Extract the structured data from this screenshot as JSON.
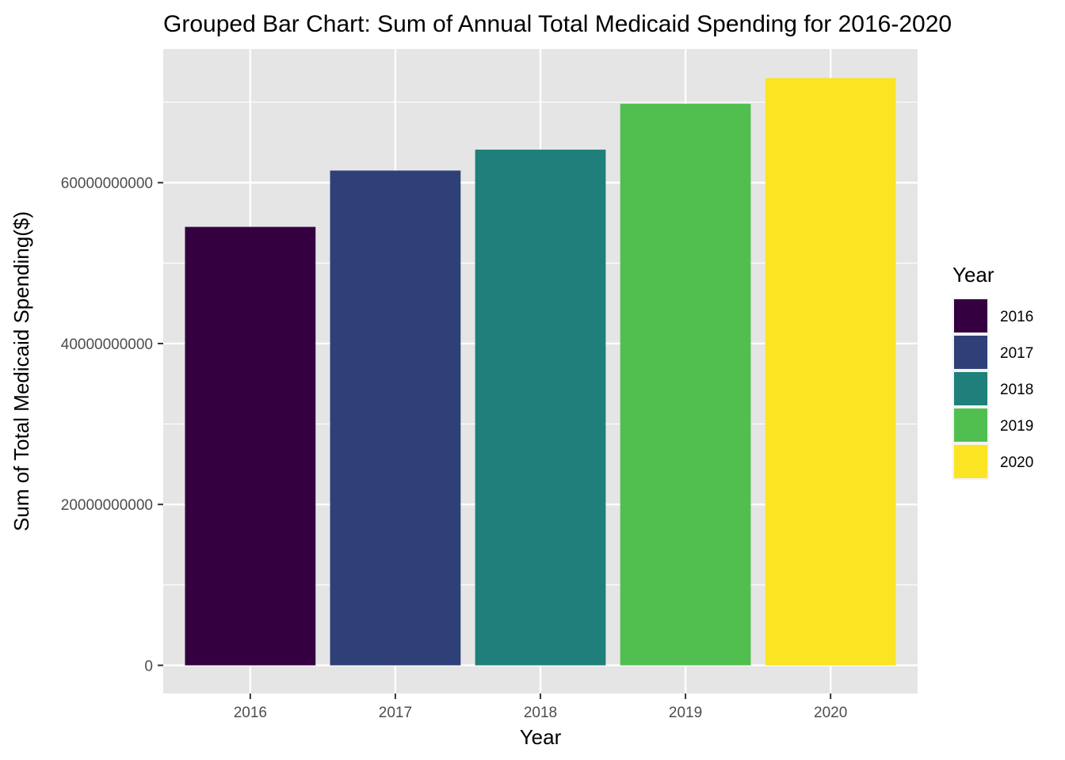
{
  "chart_data": {
    "type": "bar",
    "title": "Grouped Bar Chart: Sum of Annual Total Medicaid Spending for 2016-2020",
    "xlabel": "Year",
    "ylabel": "Sum of Total Medicaid Spending($)",
    "categories": [
      "2016",
      "2017",
      "2018",
      "2019",
      "2020"
    ],
    "values": [
      54500000000,
      61500000000,
      64100000000,
      69800000000,
      73000000000
    ],
    "ylim": [
      -3500000000,
      76600000000
    ],
    "yticks": [
      0,
      20000000000,
      40000000000,
      60000000000
    ],
    "ytick_labels": [
      "0",
      "20000000000",
      "40000000000",
      "60000000000"
    ],
    "colors": [
      "#440154",
      "#3b528b",
      "#21908c",
      "#5dc863",
      "#fde725"
    ],
    "bar_colors_rendered": [
      "#350040",
      "#2f3f78",
      "#1f7f7a",
      "#51bf50",
      "#fbe422"
    ],
    "grid": true,
    "panel_background": "#e5e5e5",
    "legend": {
      "title": "Year",
      "placement": "right",
      "entries": [
        "2016",
        "2017",
        "2018",
        "2019",
        "2020"
      ]
    }
  }
}
